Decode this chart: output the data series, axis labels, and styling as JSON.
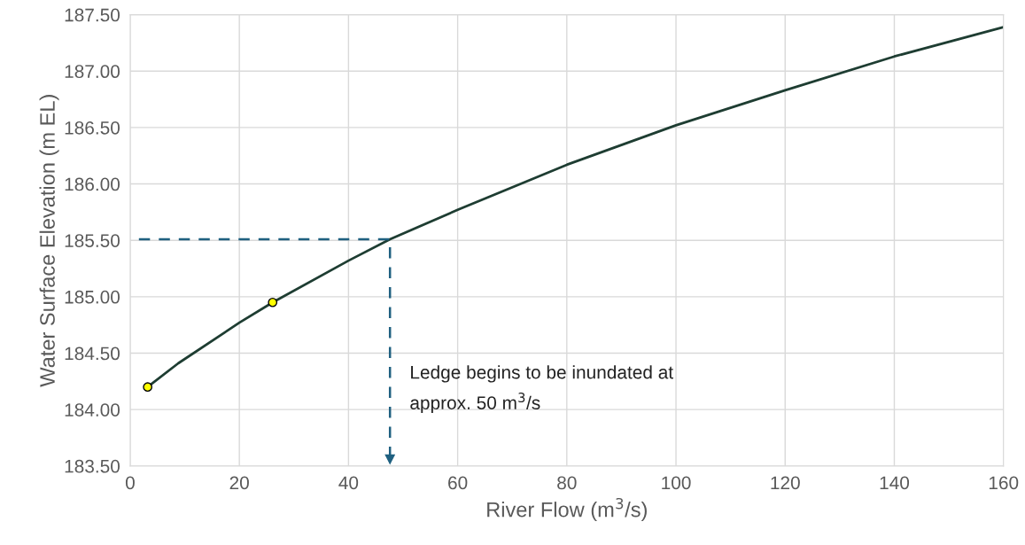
{
  "chart_data": {
    "type": "line",
    "xlabel": "River Flow (m$^{3}$/s)",
    "ylabel": "Water Surface Elevation (m EL)",
    "series": [
      {
        "color": "#1e3d32",
        "x": [
          3.2,
          8.8,
          20,
          26.1,
          40,
          47.6,
          60,
          80,
          100,
          120,
          140,
          160
        ],
        "values": [
          184.2,
          184.41,
          184.77,
          184.95,
          185.32,
          185.51,
          185.77,
          186.17,
          186.52,
          186.83,
          187.13,
          187.39
        ],
        "marker": "none",
        "line_style": "solid"
      },
      {
        "type": "line",
        "color": "#1f6080",
        "x": [
          1.6,
          47.6,
          47.6
        ],
        "values": [
          185.51,
          185.51,
          183.56
        ],
        "marker": "none",
        "line_style": "dashed"
      },
      {
        "type": "scatter",
        "color": "#ffff00",
        "x": [
          3.2,
          26.1
        ],
        "values": [
          184.2,
          184.95
        ],
        "marker": "circle"
      }
    ],
    "annotations": [
      "Ledge begins to be inundated at\napprox. 50 m$^{3}$/s"
    ],
    "xlim": [
      0,
      160
    ],
    "xticks": [
      0,
      20,
      40,
      60,
      80,
      100,
      120,
      140,
      160
    ],
    "ylim": [
      183.5,
      187.5
    ],
    "yticks": [
      {
        "value": 183.5,
        "label": "183.50"
      },
      {
        "value": 184.0,
        "label": "184.00"
      },
      {
        "value": 184.5,
        "label": "184.50"
      },
      {
        "value": 185.0,
        "label": "185.00"
      },
      {
        "value": 185.5,
        "label": "185.50"
      },
      {
        "value": 186.0,
        "label": "186.00"
      },
      {
        "value": 186.5,
        "label": "186.50"
      },
      {
        "value": 187.0,
        "label": "187.00"
      },
      {
        "value": 187.5,
        "label": "187.50"
      }
    ],
    "grid": true,
    "legend": false
  }
}
